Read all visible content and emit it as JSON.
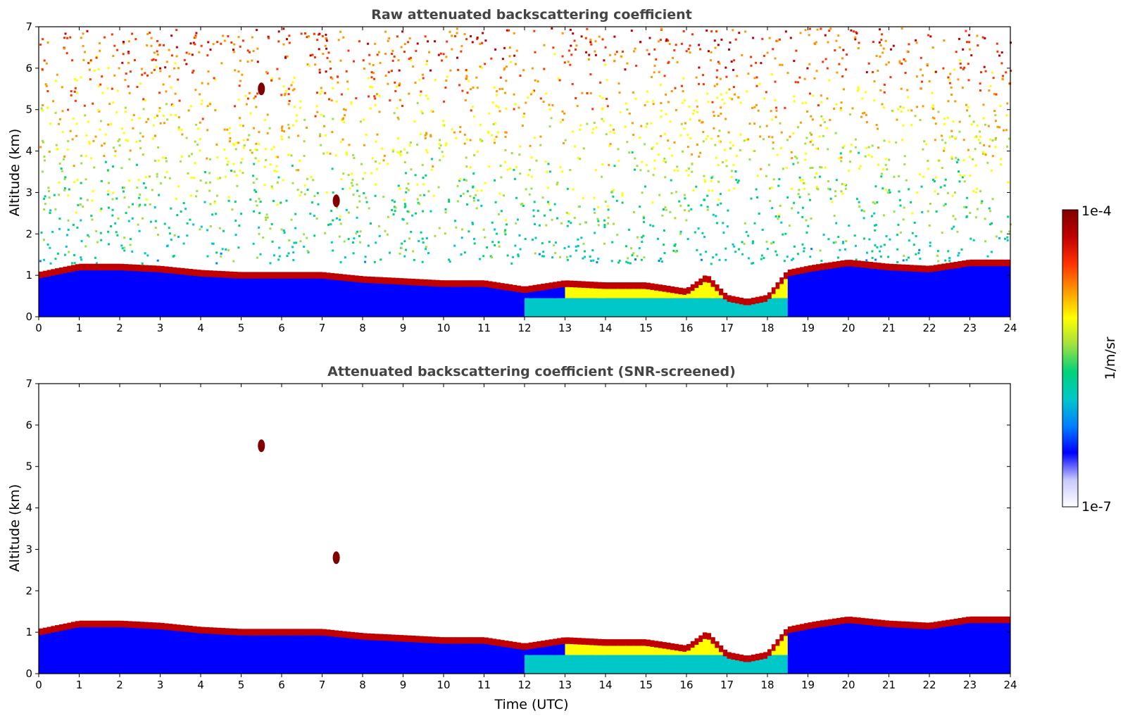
{
  "colors": {
    "axis": "#000000",
    "title": "#444444",
    "background": "#ffffff"
  },
  "colormap": [
    "#ffffff",
    "#c8c8ff",
    "#0000ff",
    "#0080ff",
    "#00c8c8",
    "#00d27a",
    "#a0e040",
    "#ffff00",
    "#ff9900",
    "#ff3300",
    "#c00000",
    "#800000"
  ],
  "chart_data": [
    {
      "type": "heatmap",
      "title": "Raw attenuated backscattering coefficient",
      "xlabel": "",
      "ylabel": "Altitude (km)",
      "xlim": [
        0,
        24
      ],
      "ylim": [
        0,
        7
      ],
      "x_ticks": [
        "0",
        "1",
        "2",
        "3",
        "4",
        "5",
        "6",
        "7",
        "8",
        "9",
        "10",
        "11",
        "12",
        "13",
        "14",
        "15",
        "16",
        "17",
        "18",
        "19",
        "20",
        "21",
        "22",
        "23",
        "24"
      ],
      "y_ticks": [
        "0",
        "1",
        "2",
        "3",
        "4",
        "5",
        "6",
        "7"
      ],
      "noise_background": true,
      "layer_top_km": [
        [
          0,
          1.0
        ],
        [
          1,
          1.2
        ],
        [
          2,
          1.2
        ],
        [
          3,
          1.15
        ],
        [
          4,
          1.05
        ],
        [
          5,
          1.0
        ],
        [
          6,
          1.0
        ],
        [
          7,
          1.0
        ],
        [
          8,
          0.9
        ],
        [
          9,
          0.85
        ],
        [
          10,
          0.8
        ],
        [
          11,
          0.8
        ],
        [
          12,
          0.65
        ],
        [
          13,
          0.8
        ],
        [
          14,
          0.75
        ],
        [
          15,
          0.75
        ],
        [
          16,
          0.6
        ],
        [
          16.5,
          0.95
        ],
        [
          17,
          0.45
        ],
        [
          17.5,
          0.35
        ],
        [
          18,
          0.45
        ],
        [
          18.5,
          1.05
        ],
        [
          19,
          1.15
        ],
        [
          19.3,
          1.2
        ],
        [
          20,
          1.3
        ],
        [
          21,
          1.2
        ],
        [
          22,
          1.15
        ],
        [
          23,
          1.3
        ],
        [
          24,
          1.3
        ]
      ],
      "cloud_patches": [
        {
          "time_utc": 5.5,
          "alt_km": 5.5,
          "level": "high"
        },
        {
          "time_utc": 7.35,
          "alt_km": 2.8,
          "level": "high"
        }
      ]
    },
    {
      "type": "heatmap",
      "title": "Attenuated backscattering coefficient (SNR-screened)",
      "xlabel": "Time (UTC)",
      "ylabel": "Altitude (km)",
      "xlim": [
        0,
        24
      ],
      "ylim": [
        0,
        7
      ],
      "x_ticks": [
        "0",
        "1",
        "2",
        "3",
        "4",
        "5",
        "6",
        "7",
        "8",
        "9",
        "10",
        "11",
        "12",
        "13",
        "14",
        "15",
        "16",
        "17",
        "18",
        "19",
        "20",
        "21",
        "22",
        "23",
        "24"
      ],
      "y_ticks": [
        "0",
        "1",
        "2",
        "3",
        "4",
        "5",
        "6",
        "7"
      ],
      "noise_background": false,
      "layer_top_km": [
        [
          0,
          1.0
        ],
        [
          1,
          1.2
        ],
        [
          2,
          1.2
        ],
        [
          3,
          1.15
        ],
        [
          4,
          1.05
        ],
        [
          5,
          1.0
        ],
        [
          6,
          1.0
        ],
        [
          7,
          1.0
        ],
        [
          8,
          0.9
        ],
        [
          9,
          0.85
        ],
        [
          10,
          0.8
        ],
        [
          11,
          0.8
        ],
        [
          12,
          0.65
        ],
        [
          13,
          0.8
        ],
        [
          14,
          0.75
        ],
        [
          15,
          0.75
        ],
        [
          16,
          0.6
        ],
        [
          16.5,
          0.95
        ],
        [
          17,
          0.45
        ],
        [
          17.5,
          0.35
        ],
        [
          18,
          0.45
        ],
        [
          18.5,
          1.05
        ],
        [
          19,
          1.15
        ],
        [
          19.3,
          1.2
        ],
        [
          20,
          1.3
        ],
        [
          21,
          1.2
        ],
        [
          22,
          1.15
        ],
        [
          23,
          1.3
        ],
        [
          24,
          1.3
        ]
      ],
      "cloud_patches": [
        {
          "time_utc": 5.5,
          "alt_km": 5.5,
          "level": "high"
        },
        {
          "time_utc": 7.35,
          "alt_km": 2.8,
          "level": "high"
        }
      ]
    }
  ],
  "colorbar": {
    "label": "1/m/sr",
    "max_label": "1e-4",
    "min_label": "1e-7",
    "scale": "log"
  }
}
